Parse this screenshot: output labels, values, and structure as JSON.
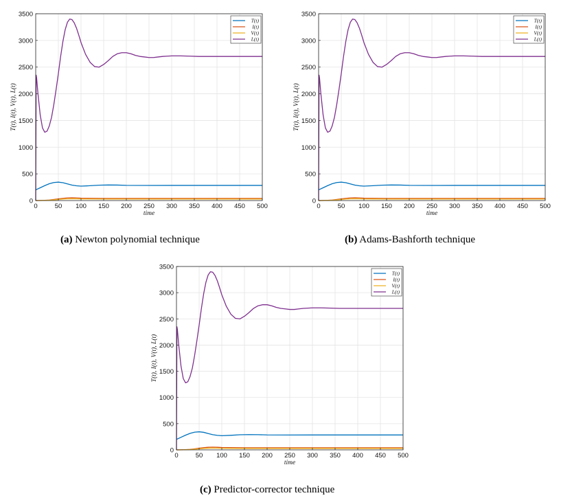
{
  "figure": {
    "captions": [
      {
        "tag": "(a)",
        "text": "Newton polynomial technique"
      },
      {
        "tag": "(b)",
        "text": "Adams-Bashforth technique"
      },
      {
        "tag": "(c)",
        "text": "Predictor-corrector technique"
      }
    ]
  },
  "chart_data": [
    {
      "type": "line",
      "xlabel": "time",
      "ylabel": "T(t), I(t), V(t), L(t)",
      "xlim": [
        0,
        500
      ],
      "ylim": [
        0,
        3500
      ],
      "xticks": [
        0,
        50,
        100,
        150,
        200,
        250,
        300,
        350,
        400,
        450,
        500
      ],
      "yticks": [
        0,
        500,
        1000,
        1500,
        2000,
        2500,
        3000,
        3500
      ],
      "grid": true,
      "legend_position": "top-right",
      "series": [
        {
          "name": "T(t)",
          "color": "#0072BD",
          "x": [
            0,
            10,
            20,
            30,
            40,
            50,
            60,
            70,
            80,
            90,
            100,
            120,
            140,
            160,
            180,
            200,
            250,
            300,
            350,
            400,
            450,
            500
          ],
          "y": [
            200,
            240,
            280,
            315,
            338,
            345,
            335,
            312,
            290,
            277,
            270,
            278,
            288,
            292,
            290,
            285,
            283,
            284,
            284,
            284,
            284,
            284
          ]
        },
        {
          "name": "I(t)",
          "color": "#D95319",
          "x": [
            0,
            10,
            20,
            30,
            40,
            50,
            60,
            70,
            80,
            90,
            100,
            150,
            200,
            300,
            400,
            500
          ],
          "y": [
            0,
            2,
            5,
            10,
            20,
            32,
            42,
            50,
            52,
            50,
            45,
            40,
            40,
            40,
            40,
            40
          ]
        },
        {
          "name": "V(t)",
          "color": "#EDB120",
          "x": [
            0,
            10,
            20,
            30,
            40,
            50,
            60,
            70,
            80,
            90,
            100,
            150,
            200,
            300,
            400,
            500
          ],
          "y": [
            0,
            1,
            3,
            6,
            12,
            20,
            27,
            32,
            34,
            33,
            30,
            27,
            27,
            27,
            27,
            27
          ]
        },
        {
          "name": "L(t)",
          "color": "#7E2F8E",
          "x": [
            0,
            1,
            2,
            5,
            10,
            15,
            20,
            25,
            30,
            35,
            40,
            45,
            50,
            55,
            60,
            65,
            70,
            75,
            80,
            85,
            90,
            95,
            100,
            110,
            120,
            130,
            140,
            150,
            160,
            170,
            180,
            190,
            200,
            210,
            220,
            230,
            240,
            250,
            260,
            270,
            280,
            290,
            300,
            320,
            340,
            360,
            380,
            400,
            450,
            500
          ],
          "y": [
            0,
            2350,
            2300,
            2000,
            1600,
            1360,
            1280,
            1300,
            1400,
            1560,
            1800,
            2080,
            2380,
            2700,
            2980,
            3200,
            3340,
            3400,
            3390,
            3330,
            3230,
            3100,
            2960,
            2740,
            2590,
            2510,
            2500,
            2550,
            2620,
            2700,
            2750,
            2770,
            2770,
            2750,
            2720,
            2700,
            2690,
            2680,
            2680,
            2690,
            2700,
            2705,
            2710,
            2710,
            2705,
            2700,
            2700,
            2700,
            2700,
            2700
          ]
        }
      ]
    },
    {
      "type": "line",
      "xlabel": "time",
      "ylabel": "T(t), I(t), V(t), L(t)",
      "xlim": [
        0,
        500
      ],
      "ylim": [
        0,
        3500
      ],
      "xticks": [
        0,
        50,
        100,
        150,
        200,
        250,
        300,
        350,
        400,
        450,
        500
      ],
      "yticks": [
        0,
        500,
        1000,
        1500,
        2000,
        2500,
        3000,
        3500
      ],
      "grid": true,
      "legend_position": "top-right",
      "series": [
        {
          "name": "T(t)",
          "color": "#0072BD",
          "x": [
            0,
            10,
            20,
            30,
            40,
            50,
            60,
            70,
            80,
            90,
            100,
            120,
            140,
            160,
            180,
            200,
            250,
            300,
            350,
            400,
            450,
            500
          ],
          "y": [
            200,
            240,
            280,
            315,
            338,
            345,
            335,
            312,
            290,
            277,
            270,
            278,
            288,
            292,
            290,
            285,
            283,
            284,
            284,
            284,
            284,
            284
          ]
        },
        {
          "name": "I(t)",
          "color": "#D95319",
          "x": [
            0,
            10,
            20,
            30,
            40,
            50,
            60,
            70,
            80,
            90,
            100,
            150,
            200,
            300,
            400,
            500
          ],
          "y": [
            0,
            2,
            5,
            10,
            20,
            32,
            42,
            50,
            52,
            50,
            45,
            40,
            40,
            40,
            40,
            40
          ]
        },
        {
          "name": "V(t)",
          "color": "#EDB120",
          "x": [
            0,
            10,
            20,
            30,
            40,
            50,
            60,
            70,
            80,
            90,
            100,
            150,
            200,
            300,
            400,
            500
          ],
          "y": [
            0,
            1,
            3,
            6,
            12,
            20,
            27,
            32,
            34,
            33,
            30,
            27,
            27,
            27,
            27,
            27
          ]
        },
        {
          "name": "L(t)",
          "color": "#7E2F8E",
          "x": [
            0,
            1,
            2,
            5,
            10,
            15,
            20,
            25,
            30,
            35,
            40,
            45,
            50,
            55,
            60,
            65,
            70,
            75,
            80,
            85,
            90,
            95,
            100,
            110,
            120,
            130,
            140,
            150,
            160,
            170,
            180,
            190,
            200,
            210,
            220,
            230,
            240,
            250,
            260,
            270,
            280,
            290,
            300,
            320,
            340,
            360,
            380,
            400,
            450,
            500
          ],
          "y": [
            0,
            2350,
            2300,
            2000,
            1600,
            1360,
            1280,
            1300,
            1400,
            1560,
            1800,
            2080,
            2380,
            2700,
            2980,
            3200,
            3340,
            3400,
            3390,
            3330,
            3230,
            3100,
            2960,
            2740,
            2590,
            2510,
            2500,
            2550,
            2620,
            2700,
            2750,
            2770,
            2770,
            2750,
            2720,
            2700,
            2690,
            2680,
            2680,
            2690,
            2700,
            2705,
            2710,
            2710,
            2705,
            2700,
            2700,
            2700,
            2700,
            2700
          ]
        }
      ]
    },
    {
      "type": "line",
      "xlabel": "time",
      "ylabel": "T(t), I(t), V(t), L(t)",
      "xlim": [
        0,
        500
      ],
      "ylim": [
        0,
        3500
      ],
      "xticks": [
        0,
        50,
        100,
        150,
        200,
        250,
        300,
        350,
        400,
        450,
        500
      ],
      "yticks": [
        0,
        500,
        1000,
        1500,
        2000,
        2500,
        3000,
        3500
      ],
      "grid": true,
      "legend_position": "top-right",
      "series": [
        {
          "name": "T(t)",
          "color": "#0072BD",
          "x": [
            0,
            10,
            20,
            30,
            40,
            50,
            60,
            70,
            80,
            90,
            100,
            120,
            140,
            160,
            180,
            200,
            250,
            300,
            350,
            400,
            450,
            500
          ],
          "y": [
            200,
            240,
            280,
            315,
            338,
            345,
            335,
            312,
            290,
            277,
            270,
            278,
            288,
            292,
            290,
            285,
            283,
            284,
            284,
            284,
            284,
            284
          ]
        },
        {
          "name": "I(t)",
          "color": "#D95319",
          "x": [
            0,
            10,
            20,
            30,
            40,
            50,
            60,
            70,
            80,
            90,
            100,
            150,
            200,
            300,
            400,
            500
          ],
          "y": [
            0,
            2,
            5,
            10,
            20,
            32,
            42,
            50,
            52,
            50,
            45,
            40,
            40,
            40,
            40,
            40
          ]
        },
        {
          "name": "V(t)",
          "color": "#EDB120",
          "x": [
            0,
            10,
            20,
            30,
            40,
            50,
            60,
            70,
            80,
            90,
            100,
            150,
            200,
            300,
            400,
            500
          ],
          "y": [
            0,
            1,
            3,
            6,
            12,
            20,
            27,
            32,
            34,
            33,
            30,
            27,
            27,
            27,
            27,
            27
          ]
        },
        {
          "name": "L(t)",
          "color": "#7E2F8E",
          "x": [
            0,
            1,
            2,
            5,
            10,
            15,
            20,
            25,
            30,
            35,
            40,
            45,
            50,
            55,
            60,
            65,
            70,
            75,
            80,
            85,
            90,
            95,
            100,
            110,
            120,
            130,
            140,
            150,
            160,
            170,
            180,
            190,
            200,
            210,
            220,
            230,
            240,
            250,
            260,
            270,
            280,
            290,
            300,
            320,
            340,
            360,
            380,
            400,
            450,
            500
          ],
          "y": [
            0,
            2350,
            2300,
            2000,
            1600,
            1360,
            1280,
            1300,
            1400,
            1560,
            1800,
            2080,
            2380,
            2700,
            2980,
            3200,
            3340,
            3400,
            3390,
            3330,
            3230,
            3100,
            2960,
            2740,
            2590,
            2510,
            2500,
            2550,
            2620,
            2700,
            2750,
            2770,
            2770,
            2750,
            2720,
            2700,
            2690,
            2680,
            2680,
            2690,
            2700,
            2705,
            2710,
            2710,
            2705,
            2700,
            2700,
            2700,
            2700,
            2700
          ]
        }
      ]
    }
  ]
}
